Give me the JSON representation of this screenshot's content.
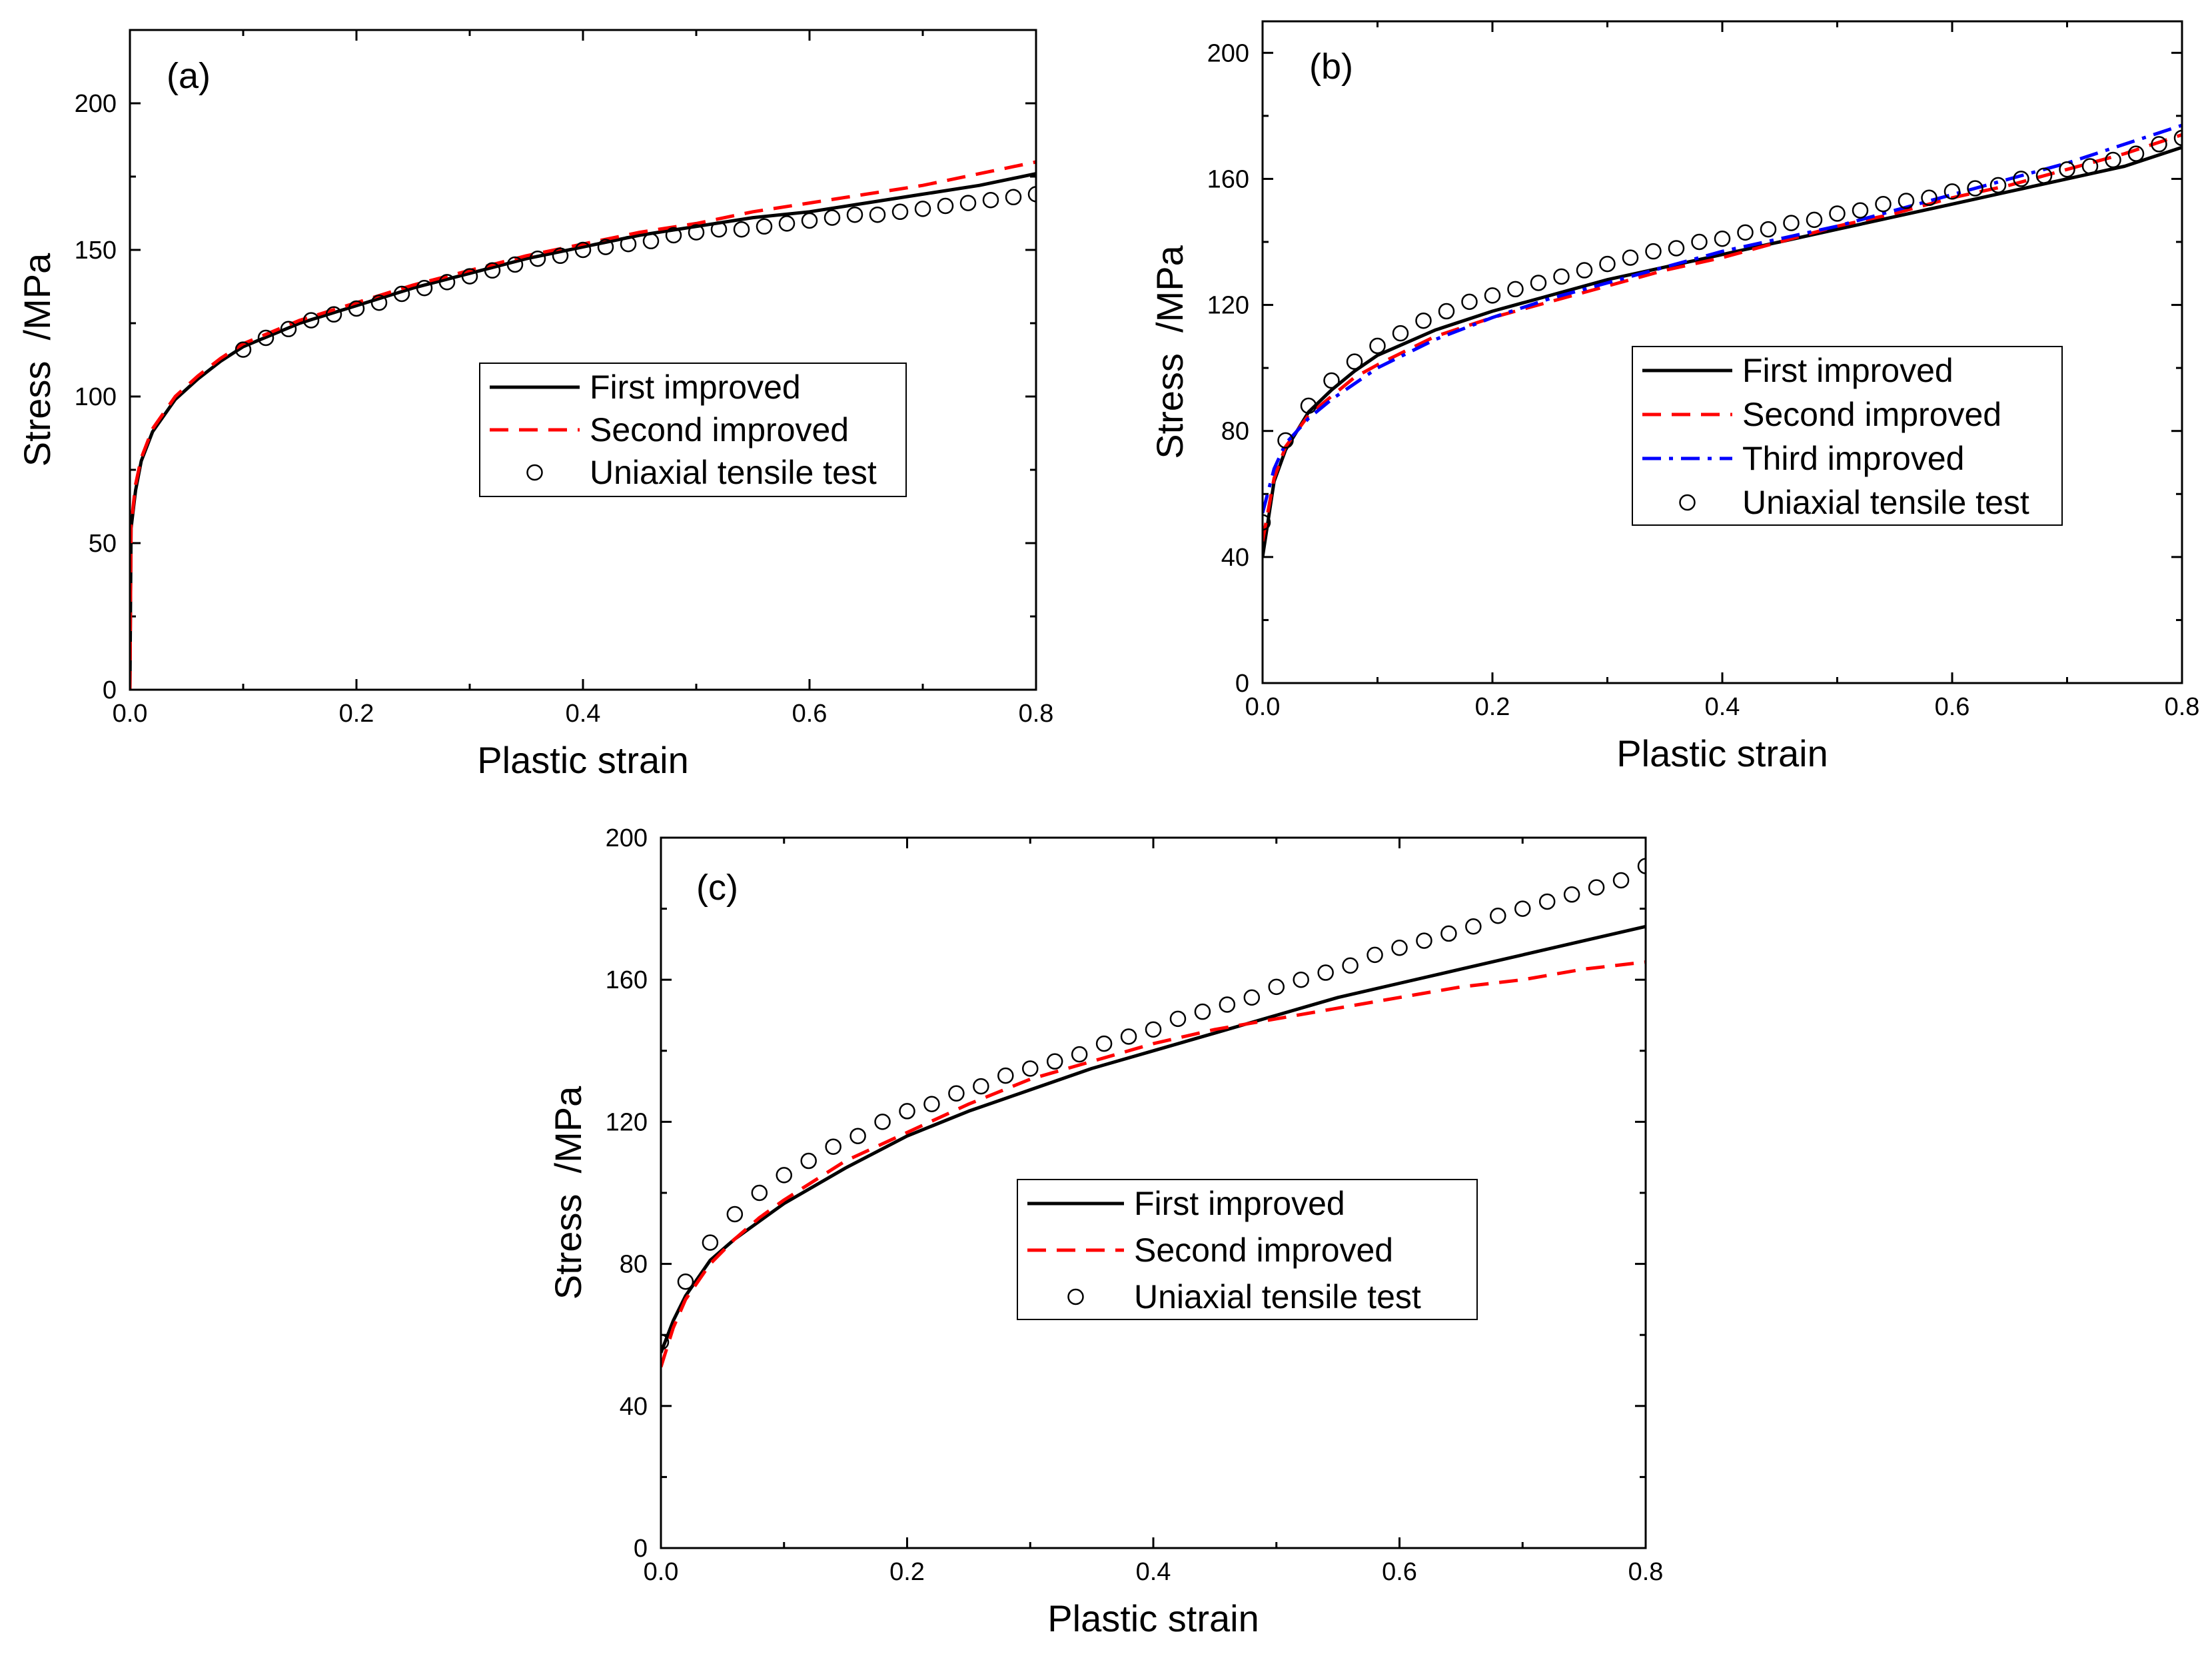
{
  "chart_data": [
    {
      "type": "line",
      "panel_label": "(a)",
      "xlabel": "Plastic strain",
      "ylabel": "Stress  /MPa",
      "xlim": [
        0,
        0.8
      ],
      "ylim": [
        0,
        225
      ],
      "xticks": [
        0.0,
        0.2,
        0.4,
        0.6,
        0.8
      ],
      "xtick_labels": [
        "0.0",
        "0.2",
        "0.4",
        "0.6",
        "0.8"
      ],
      "yticks": [
        0,
        50,
        100,
        150,
        200
      ],
      "ytick_labels": [
        "0",
        "50",
        "100",
        "150",
        "200"
      ],
      "legend_position": "center-right",
      "series": [
        {
          "name": "First improved",
          "style": "solid",
          "color": "#000000",
          "x": [
            0,
            0.001,
            0.005,
            0.01,
            0.02,
            0.04,
            0.06,
            0.08,
            0.1,
            0.15,
            0.2,
            0.25,
            0.3,
            0.35,
            0.4,
            0.45,
            0.5,
            0.55,
            0.6,
            0.65,
            0.7,
            0.75,
            0.8
          ],
          "y": [
            0,
            55,
            68,
            78,
            88,
            99,
            106,
            112,
            117,
            125,
            131,
            137,
            142,
            147,
            151,
            155,
            158,
            161,
            163,
            166,
            169,
            172,
            176
          ]
        },
        {
          "name": "Second improved",
          "style": "dashed",
          "color": "#ff0000",
          "x": [
            0,
            0.001,
            0.005,
            0.01,
            0.02,
            0.04,
            0.06,
            0.08,
            0.1,
            0.15,
            0.2,
            0.25,
            0.3,
            0.35,
            0.4,
            0.45,
            0.5,
            0.55,
            0.6,
            0.65,
            0.7,
            0.75,
            0.8
          ],
          "y": [
            0,
            56,
            70,
            79,
            89,
            100,
            107,
            113,
            118,
            126,
            132,
            138,
            143,
            148,
            152,
            156,
            159,
            163,
            166,
            169,
            172,
            176,
            180
          ]
        },
        {
          "name": "Uniaxial tensile test",
          "style": "markers",
          "color": "#000000",
          "x": [
            0.1,
            0.12,
            0.14,
            0.16,
            0.18,
            0.2,
            0.22,
            0.24,
            0.26,
            0.28,
            0.3,
            0.32,
            0.34,
            0.36,
            0.38,
            0.4,
            0.42,
            0.44,
            0.46,
            0.48,
            0.5,
            0.52,
            0.54,
            0.56,
            0.58,
            0.6,
            0.62,
            0.64,
            0.66,
            0.68,
            0.7,
            0.72,
            0.74,
            0.76,
            0.78,
            0.8
          ],
          "y": [
            116,
            120,
            123,
            126,
            128,
            130,
            132,
            135,
            137,
            139,
            141,
            143,
            145,
            147,
            148,
            150,
            151,
            152,
            153,
            155,
            156,
            157,
            157,
            158,
            159,
            160,
            161,
            162,
            162,
            163,
            164,
            165,
            166,
            167,
            168,
            169
          ]
        }
      ]
    },
    {
      "type": "line",
      "panel_label": "(b)",
      "xlabel": "Plastic strain",
      "ylabel": "Stress  /MPa",
      "xlim": [
        0,
        0.8
      ],
      "ylim": [
        0,
        210
      ],
      "xticks": [
        0.0,
        0.2,
        0.4,
        0.6,
        0.8
      ],
      "xtick_labels": [
        "0.0",
        "0.2",
        "0.4",
        "0.6",
        "0.8"
      ],
      "yticks": [
        0,
        40,
        80,
        120,
        160,
        200
      ],
      "ytick_labels": [
        "0",
        "40",
        "80",
        "120",
        "160",
        "200"
      ],
      "legend_position": "center-right",
      "series": [
        {
          "name": "First improved",
          "style": "solid",
          "color": "#000000",
          "x": [
            0,
            0.01,
            0.02,
            0.04,
            0.06,
            0.08,
            0.1,
            0.15,
            0.2,
            0.25,
            0.3,
            0.35,
            0.4,
            0.45,
            0.5,
            0.55,
            0.6,
            0.65,
            0.7,
            0.75,
            0.8
          ],
          "y": [
            40,
            64,
            74,
            86,
            93,
            99,
            104,
            112,
            118,
            123,
            128,
            132,
            136,
            140,
            144,
            148,
            152,
            156,
            160,
            164,
            170
          ]
        },
        {
          "name": "Second improved",
          "style": "dashed",
          "color": "#ff0000",
          "x": [
            0,
            0.01,
            0.02,
            0.04,
            0.06,
            0.08,
            0.1,
            0.15,
            0.2,
            0.25,
            0.3,
            0.35,
            0.4,
            0.45,
            0.5,
            0.55,
            0.6,
            0.65,
            0.7,
            0.75,
            0.8
          ],
          "y": [
            45,
            65,
            75,
            85,
            91,
            97,
            101,
            110,
            116,
            121,
            126,
            131,
            135,
            140,
            145,
            149,
            154,
            158,
            163,
            168,
            174
          ]
        },
        {
          "name": "Third improved",
          "style": "dashdot",
          "color": "#0000ff",
          "x": [
            0,
            0.01,
            0.02,
            0.04,
            0.06,
            0.08,
            0.1,
            0.15,
            0.2,
            0.25,
            0.3,
            0.35,
            0.4,
            0.45,
            0.5,
            0.55,
            0.6,
            0.65,
            0.7,
            0.75,
            0.8
          ],
          "y": [
            54,
            68,
            76,
            84,
            90,
            95,
            100,
            109,
            116,
            122,
            127,
            132,
            137,
            141,
            145,
            150,
            155,
            160,
            165,
            171,
            177
          ]
        },
        {
          "name": "Uniaxial tensile test",
          "style": "markers",
          "color": "#000000",
          "x": [
            0,
            0.02,
            0.04,
            0.06,
            0.08,
            0.1,
            0.12,
            0.14,
            0.16,
            0.18,
            0.2,
            0.22,
            0.24,
            0.26,
            0.28,
            0.3,
            0.32,
            0.34,
            0.36,
            0.38,
            0.4,
            0.42,
            0.44,
            0.46,
            0.48,
            0.5,
            0.52,
            0.54,
            0.56,
            0.58,
            0.6,
            0.62,
            0.64,
            0.66,
            0.68,
            0.7,
            0.72,
            0.74,
            0.76,
            0.78,
            0.8
          ],
          "y": [
            51,
            77,
            88,
            96,
            102,
            107,
            111,
            115,
            118,
            121,
            123,
            125,
            127,
            129,
            131,
            133,
            135,
            137,
            138,
            140,
            141,
            143,
            144,
            146,
            147,
            149,
            150,
            152,
            153,
            154,
            156,
            157,
            158,
            160,
            161,
            163,
            164,
            166,
            168,
            171,
            173
          ]
        }
      ]
    },
    {
      "type": "line",
      "panel_label": "(c)",
      "xlabel": "Plastic strain",
      "ylabel": "Stress  /MPa",
      "xlim": [
        0,
        0.8
      ],
      "ylim": [
        0,
        200
      ],
      "xticks": [
        0.0,
        0.2,
        0.4,
        0.6,
        0.8
      ],
      "xtick_labels": [
        "0.0",
        "0.2",
        "0.4",
        "0.6",
        "0.8"
      ],
      "yticks": [
        0,
        40,
        80,
        120,
        160,
        200
      ],
      "ytick_labels": [
        "0",
        "40",
        "80",
        "120",
        "160",
        "200"
      ],
      "legend_position": "center-right",
      "series": [
        {
          "name": "First improved",
          "style": "solid",
          "color": "#000000",
          "x": [
            0,
            0.01,
            0.02,
            0.04,
            0.06,
            0.08,
            0.1,
            0.15,
            0.2,
            0.25,
            0.3,
            0.35,
            0.4,
            0.45,
            0.5,
            0.55,
            0.6,
            0.65,
            0.7,
            0.75,
            0.8
          ],
          "y": [
            55,
            64,
            71,
            81,
            87,
            92,
            97,
            107,
            116,
            123,
            129,
            135,
            140,
            145,
            150,
            155,
            159,
            163,
            167,
            171,
            175
          ]
        },
        {
          "name": "Second improved",
          "style": "dashed",
          "color": "#ff0000",
          "x": [
            0,
            0.01,
            0.02,
            0.04,
            0.06,
            0.08,
            0.1,
            0.15,
            0.2,
            0.25,
            0.3,
            0.35,
            0.4,
            0.45,
            0.5,
            0.55,
            0.6,
            0.65,
            0.7,
            0.75,
            0.8
          ],
          "y": [
            51,
            62,
            70,
            80,
            87,
            93,
            98,
            109,
            117,
            125,
            132,
            137,
            142,
            146,
            149,
            152,
            155,
            158,
            160,
            163,
            165
          ]
        },
        {
          "name": "Uniaxial tensile test",
          "style": "markers",
          "color": "#000000",
          "x": [
            0,
            0.02,
            0.04,
            0.06,
            0.08,
            0.1,
            0.12,
            0.14,
            0.16,
            0.18,
            0.2,
            0.22,
            0.24,
            0.26,
            0.28,
            0.3,
            0.32,
            0.34,
            0.36,
            0.38,
            0.4,
            0.42,
            0.44,
            0.46,
            0.48,
            0.5,
            0.52,
            0.54,
            0.56,
            0.58,
            0.6,
            0.62,
            0.64,
            0.66,
            0.68,
            0.7,
            0.72,
            0.74,
            0.76,
            0.78,
            0.8
          ],
          "y": [
            58,
            75,
            86,
            94,
            100,
            105,
            109,
            113,
            116,
            120,
            123,
            125,
            128,
            130,
            133,
            135,
            137,
            139,
            142,
            144,
            146,
            149,
            151,
            153,
            155,
            158,
            160,
            162,
            164,
            167,
            169,
            171,
            173,
            175,
            178,
            180,
            182,
            184,
            186,
            188,
            192
          ]
        }
      ]
    }
  ]
}
